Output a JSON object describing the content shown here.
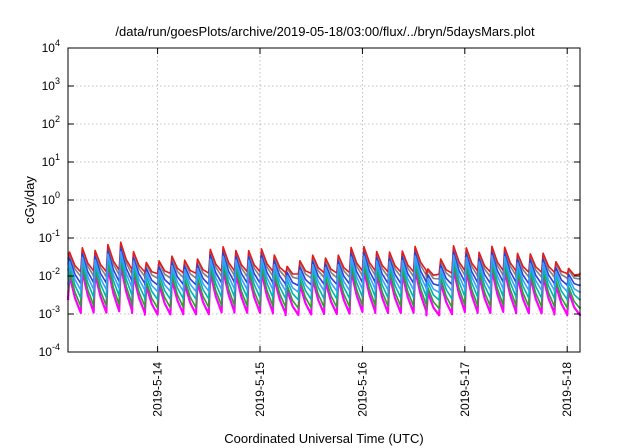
{
  "chart_data": {
    "type": "line",
    "title": "/data/run/goesPlots/archive/2019-05-18/03:00/flux/../bryn/5daysMars.plot",
    "xlabel": "Coordinated Universal Time (UTC)",
    "ylabel": "cGy/day",
    "y_scale": "log",
    "ylim": [
      0.0001,
      10000
    ],
    "y_ticks": [
      {
        "base": "10",
        "exp": "-4",
        "value": 0.0001
      },
      {
        "base": "10",
        "exp": "-3",
        "value": 0.001
      },
      {
        "base": "10",
        "exp": "-2",
        "value": 0.01
      },
      {
        "base": "10",
        "exp": "-1",
        "value": 0.1
      },
      {
        "base": "10",
        "exp": "0",
        "value": 1
      },
      {
        "base": "10",
        "exp": "1",
        "value": 10
      },
      {
        "base": "10",
        "exp": "2",
        "value": 100
      },
      {
        "base": "10",
        "exp": "3",
        "value": 1000
      },
      {
        "base": "10",
        "exp": "4",
        "value": 10000
      }
    ],
    "xlim": [
      "2019-05-13T03:00",
      "2019-05-18T03:00"
    ],
    "x_ticks": [
      "2019-5-14",
      "2019-5-15",
      "2019-5-16",
      "2019-5-17",
      "2019-5-18"
    ],
    "grid": true,
    "legend": "none",
    "pattern": {
      "cycle_hours": 3,
      "peak_values": [
        0.05,
        0.045,
        0.035,
        0.028,
        0.022,
        0.016,
        0.012
      ],
      "trough_values": [
        0.012,
        0.009,
        0.006,
        0.004,
        0.0025,
        0.0015,
        0.001
      ],
      "notes": "sawtooth: sharp rise each cycle then decay; seven overlapping curves"
    },
    "series_colors": [
      "#e41a1c",
      "#7f7f7f",
      "#2f3fd6",
      "#3aa0ff",
      "#00b3b3",
      "#2ca02c",
      "#ff00ff"
    ]
  }
}
